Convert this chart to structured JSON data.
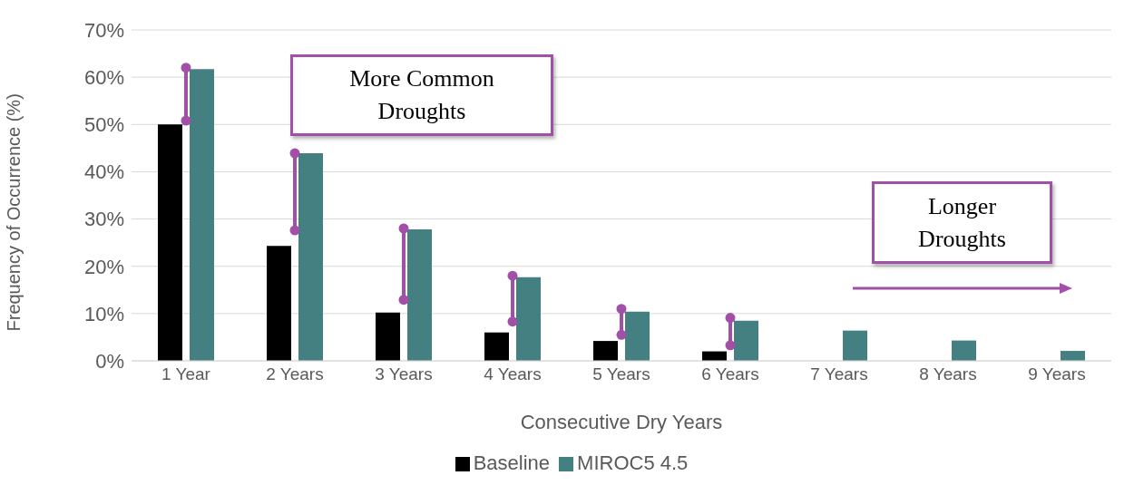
{
  "chart_data": {
    "type": "bar",
    "xlabel": "Consecutive Dry Years",
    "ylabel": "Frequency of Occurrence (%)",
    "categories": [
      "1 Year",
      "2 Years",
      "3 Years",
      "4 Years",
      "5 Years",
      "6 Years",
      "7 Years",
      "8 Years",
      "9 Years"
    ],
    "series": [
      {
        "name": "Baseline",
        "color": "#000000",
        "values": [
          50,
          24.3,
          10.2,
          6,
          4.2,
          2,
          null,
          null,
          null
        ]
      },
      {
        "name": "MIROC5 4.5",
        "color": "#447f82",
        "values": [
          61.7,
          43.9,
          27.8,
          17.7,
          10.4,
          8.5,
          6.4,
          4.3,
          2.1
        ]
      },
      {
        "type": "line",
        "color": "#a24fa8",
        "marker": "circle",
        "x": [
          "1 Year",
          "1 Year"
        ],
        "values": [
          50.8,
          62
        ]
      },
      {
        "type": "line",
        "color": "#a24fa8",
        "marker": "circle",
        "x": [
          "2 Years",
          "2 Years"
        ],
        "values": [
          27.6,
          43.9
        ]
      },
      {
        "type": "line",
        "color": "#a24fa8",
        "marker": "circle",
        "x": [
          "3 Years",
          "3 Years"
        ],
        "values": [
          12.9,
          28
        ]
      },
      {
        "type": "line",
        "color": "#a24fa8",
        "marker": "circle",
        "x": [
          "4 Years",
          "4 Years"
        ],
        "values": [
          8.3,
          18
        ]
      },
      {
        "type": "line",
        "color": "#a24fa8",
        "marker": "circle",
        "x": [
          "5 Years",
          "5 Years"
        ],
        "values": [
          5.5,
          11
        ]
      },
      {
        "type": "line",
        "color": "#a24fa8",
        "marker": "circle",
        "x": [
          "6 Years",
          "6 Years"
        ],
        "values": [
          3.3,
          9.1
        ]
      }
    ],
    "ylim": [
      0,
      70
    ],
    "yticks": [
      {
        "value": 0,
        "label": "0%"
      },
      {
        "value": 10,
        "label": "10%"
      },
      {
        "value": 20,
        "label": "20%"
      },
      {
        "value": 30,
        "label": "30%"
      },
      {
        "value": 40,
        "label": "40%"
      },
      {
        "value": 50,
        "label": "50%"
      },
      {
        "value": 60,
        "label": "60%"
      },
      {
        "value": 70,
        "label": "70%"
      }
    ],
    "grid": "y",
    "legend": "bottom",
    "annotations": [
      "More Common Droughts",
      "Longer Droughts"
    ]
  }
}
